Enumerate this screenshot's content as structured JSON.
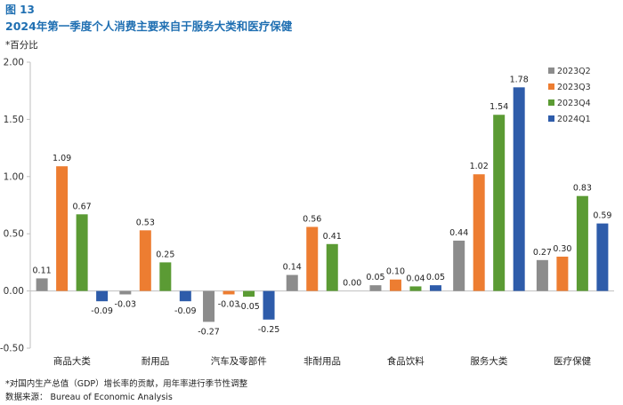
{
  "figure": {
    "label": "图 13",
    "title": "2024年第一季度个人消费主要来自于服务大类和医疗保健",
    "unit": "*百分比",
    "footnote": "*对国内生产总值（GDP）增长率的贡献，用年率进行季节性调整",
    "source": "数据来源：  Bureau of Economic Analysis"
  },
  "chart_data": {
    "type": "bar",
    "title": "2024年第一季度个人消费主要来自于服务大类和医疗保健",
    "ylabel": "*百分比",
    "xlabel": "",
    "ylim": [
      -0.5,
      2.0
    ],
    "yticks": [
      -0.5,
      0.0,
      0.5,
      1.0,
      1.5,
      2.0
    ],
    "ytick_labels": [
      "-0.50",
      "0.00",
      "0.50",
      "1.00",
      "1.50",
      "2.00"
    ],
    "categories": [
      "商品大类",
      "耐用品",
      "汽车及零部件",
      "非耐用品",
      "食品饮料",
      "服务大类",
      "医疗保健"
    ],
    "series": [
      {
        "name": "2023Q2",
        "color": "#8c8c8c",
        "values": [
          0.11,
          -0.03,
          -0.27,
          0.14,
          0.05,
          0.44,
          0.27
        ]
      },
      {
        "name": "2023Q3",
        "color": "#ed7d31",
        "values": [
          1.09,
          0.53,
          -0.03,
          0.56,
          0.1,
          1.02,
          0.3
        ]
      },
      {
        "name": "2023Q4",
        "color": "#5b9b34",
        "values": [
          0.67,
          0.25,
          -0.05,
          0.41,
          0.04,
          1.54,
          0.83
        ]
      },
      {
        "name": "2024Q1",
        "color": "#2e5caa",
        "values": [
          -0.09,
          -0.09,
          -0.25,
          0.0,
          0.05,
          1.78,
          0.59
        ]
      }
    ],
    "legend_position": "top-right",
    "grid": false
  }
}
